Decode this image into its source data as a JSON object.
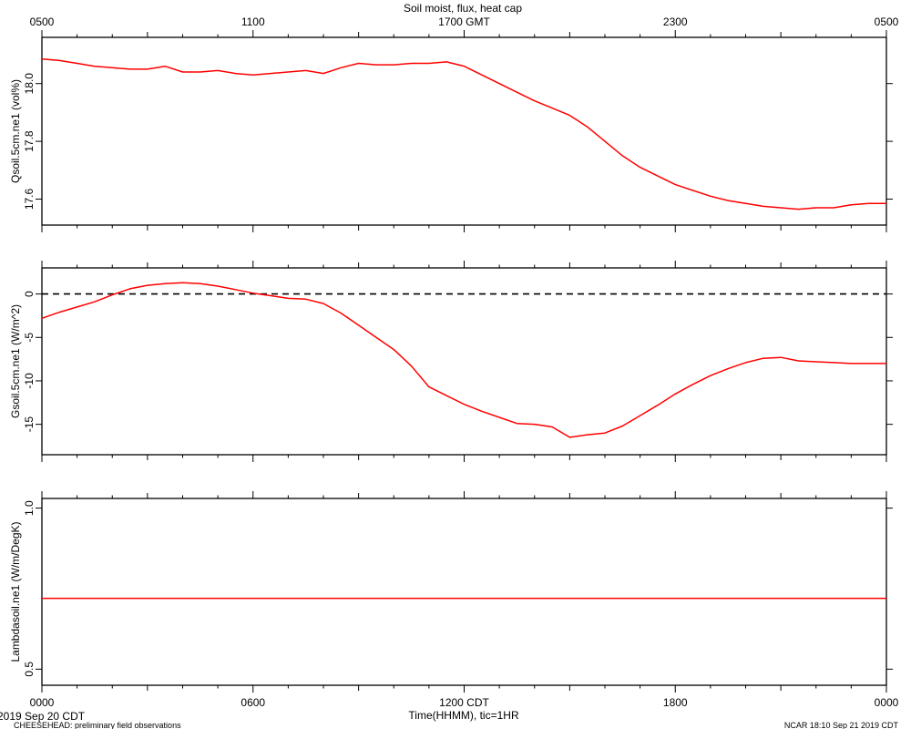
{
  "header": {
    "title": "Soil moist, flux, heat cap",
    "gmt_ticks": [
      "0500",
      "1100",
      "1700 GMT",
      "2300",
      "0500"
    ]
  },
  "footer": {
    "date_label": "2019 Sep 20 CDT",
    "project_label": "CHEESEHEAD: preliminary field observations",
    "credit_label": "NCAR 18:10 Sep 21 2019 CDT",
    "xlabel": "Time(HHMM), tic=1HR",
    "cdt_ticks": [
      "0000",
      "0600",
      "1200 CDT",
      "1800",
      "0000"
    ]
  },
  "chart_data": [
    {
      "type": "line",
      "ylabel": "Qsoil.5cm.ne1 (vol%)",
      "xlim": [
        0,
        24
      ],
      "ylim": [
        17.51,
        18.16
      ],
      "yticks": [
        17.6,
        17.8,
        18.0
      ],
      "ytick_labels": [
        "17.6",
        "17.8",
        "18.0"
      ],
      "line_color": "#ff0000",
      "x": [
        0,
        0.5,
        1,
        1.5,
        2,
        2.5,
        3,
        3.5,
        4,
        4.5,
        5,
        5.5,
        6,
        6.5,
        7,
        7.5,
        8,
        8.5,
        9,
        9.5,
        10,
        10.5,
        11,
        11.5,
        12,
        12.5,
        13,
        13.5,
        14,
        14.5,
        15,
        15.5,
        16,
        16.5,
        17,
        17.5,
        18,
        18.5,
        19,
        19.5,
        20,
        20.5,
        21,
        21.5,
        22,
        22.5,
        23,
        23.5,
        24
      ],
      "values": [
        18.085,
        18.08,
        18.07,
        18.06,
        18.055,
        18.05,
        18.05,
        18.06,
        18.04,
        18.04,
        18.045,
        18.035,
        18.03,
        18.035,
        18.04,
        18.045,
        18.035,
        18.055,
        18.07,
        18.065,
        18.065,
        18.07,
        18.07,
        18.075,
        18.06,
        18.03,
        18.0,
        17.97,
        17.94,
        17.915,
        17.89,
        17.85,
        17.8,
        17.75,
        17.71,
        17.68,
        17.65,
        17.63,
        17.61,
        17.595,
        17.585,
        17.575,
        17.57,
        17.565,
        17.57,
        17.57,
        17.58,
        17.585,
        17.585
      ]
    },
    {
      "type": "line",
      "ylabel": "Gsoil.5cm.ne1 (W/m^2)",
      "xlim": [
        0,
        24
      ],
      "ylim": [
        -18.5,
        3
      ],
      "yticks": [
        -15,
        -10,
        -5,
        0
      ],
      "ytick_labels": [
        "-15",
        "-10",
        "-5",
        "0"
      ],
      "line_color": "#ff0000",
      "reference_line": 0,
      "x": [
        0,
        0.5,
        1,
        1.5,
        2,
        2.5,
        3,
        3.5,
        4,
        4.5,
        5,
        5.5,
        6,
        6.5,
        7,
        7.5,
        8,
        8.5,
        9,
        9.5,
        10,
        10.5,
        11,
        11.5,
        12,
        12.5,
        13,
        13.5,
        14,
        14.5,
        15,
        15.5,
        16,
        16.5,
        17,
        17.5,
        18,
        18.5,
        19,
        19.5,
        20,
        20.5,
        21,
        21.5,
        22,
        22.5,
        23,
        23.5,
        24
      ],
      "values": [
        -2.8,
        -2.1,
        -1.5,
        -0.9,
        -0.1,
        0.6,
        1.0,
        1.2,
        1.3,
        1.2,
        0.9,
        0.5,
        0.1,
        -0.2,
        -0.5,
        -0.6,
        -1.1,
        -2.2,
        -3.6,
        -5.0,
        -6.4,
        -8.3,
        -10.7,
        -11.7,
        -12.7,
        -13.5,
        -14.2,
        -14.9,
        -15.0,
        -15.3,
        -16.5,
        -16.2,
        -16.0,
        -15.2,
        -14.0,
        -12.8,
        -11.5,
        -10.4,
        -9.4,
        -8.6,
        -7.9,
        -7.4,
        -7.3,
        -7.7,
        -7.8,
        -7.9,
        -8.0,
        -8.0,
        -8.0
      ]
    },
    {
      "type": "line",
      "ylabel": "Lambdasoil.ne1 (W/m/DegK)",
      "xlim": [
        0,
        24
      ],
      "ylim": [
        0.45,
        1.03
      ],
      "yticks": [
        0.5,
        1.0
      ],
      "ytick_labels": [
        "0.5",
        "1.0"
      ],
      "line_color": "#ff0000",
      "x": [
        0,
        24
      ],
      "values": [
        0.72,
        0.72
      ]
    }
  ]
}
